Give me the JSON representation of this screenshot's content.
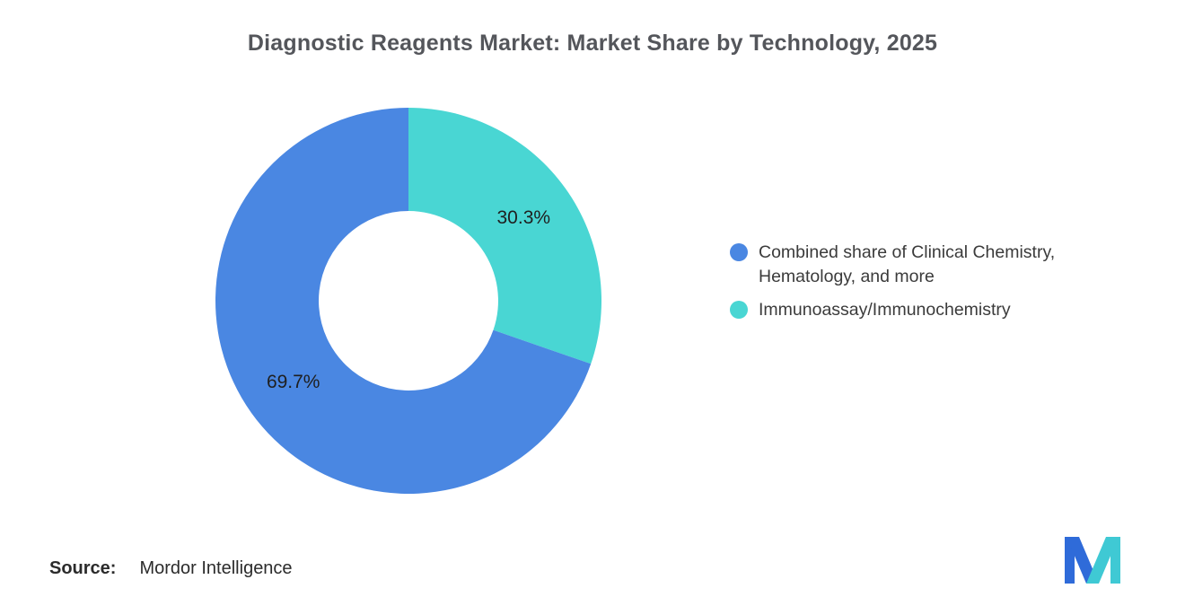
{
  "title": "Diagnostic Reagents Market: Market Share by Technology, 2025",
  "source": {
    "label": "Source:",
    "value": "Mordor Intelligence"
  },
  "logo": {
    "blue": "#2F6BD9",
    "teal": "#3FC9D4"
  },
  "chart_data": {
    "type": "pie",
    "variant": "donut",
    "title": "Diagnostic Reagents Market: Market Share by Technology, 2025",
    "slices": [
      {
        "label": "Combined share of Clinical Chemistry, Hematology, and more",
        "value": 69.7,
        "display": "69.7%",
        "color": "#4A87E2"
      },
      {
        "label": "Immunoassay/Immunochemistry",
        "value": 30.3,
        "display": "30.3%",
        "color": "#49D6D3"
      }
    ],
    "render_order": [
      1,
      0
    ],
    "start_angle_deg_from_top": 0,
    "direction": "clockwise",
    "inner_radius_ratio": 0.465,
    "labels": "inside-percent",
    "legend_position": "right",
    "background": "#FFFFFF"
  }
}
